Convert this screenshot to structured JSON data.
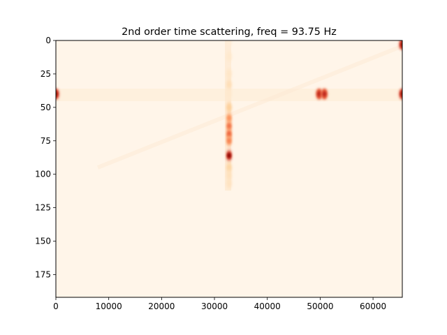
{
  "chart_data": {
    "type": "heatmap",
    "title": "2nd order time scattering, freq = 93.75 Hz",
    "xlabel": "",
    "ylabel": "",
    "xlim": [
      0,
      65536
    ],
    "ylim": [
      192,
      0
    ],
    "x_ticks": [
      0,
      10000,
      20000,
      30000,
      40000,
      50000,
      60000
    ],
    "x_tick_labels": [
      "0",
      "10000",
      "20000",
      "30000",
      "40000",
      "50000",
      "60000"
    ],
    "y_ticks": [
      0,
      25,
      50,
      75,
      100,
      125,
      150,
      175
    ],
    "y_tick_labels": [
      "0",
      "25",
      "50",
      "75",
      "100",
      "125",
      "150",
      "175"
    ],
    "colormap": "OrRd",
    "colormap_stops": [
      "#fff5e9",
      "#fdd49e",
      "#fc8d59",
      "#d7301f",
      "#7f0000"
    ],
    "grid": false,
    "hot_spots": [
      {
        "x": 32768,
        "y": 1,
        "intensity": 0.08
      },
      {
        "x": 32768,
        "y": 12,
        "intensity": 0.12
      },
      {
        "x": 32768,
        "y": 25,
        "intensity": 0.15
      },
      {
        "x": 32768,
        "y": 33,
        "intensity": 0.22
      },
      {
        "x": 32768,
        "y": 40,
        "intensity": 0.12
      },
      {
        "x": 32768,
        "y": 50,
        "intensity": 0.35
      },
      {
        "x": 32768,
        "y": 58,
        "intensity": 0.5
      },
      {
        "x": 32768,
        "y": 64,
        "intensity": 0.6
      },
      {
        "x": 32768,
        "y": 70,
        "intensity": 0.65
      },
      {
        "x": 32768,
        "y": 75,
        "intensity": 0.55
      },
      {
        "x": 32768,
        "y": 86,
        "intensity": 1.0
      },
      {
        "x": 32768,
        "y": 95,
        "intensity": 0.3
      },
      {
        "x": 32768,
        "y": 101,
        "intensity": 0.2
      },
      {
        "x": 32768,
        "y": 107,
        "intensity": 0.18
      },
      {
        "x": 0,
        "y": 40,
        "intensity": 0.95
      },
      {
        "x": 49800,
        "y": 40,
        "intensity": 0.85
      },
      {
        "x": 50800,
        "y": 40,
        "intensity": 0.85
      },
      {
        "x": 65536,
        "y": 3,
        "intensity": 0.95
      },
      {
        "x": 65536,
        "y": 40,
        "intensity": 0.95
      }
    ]
  }
}
